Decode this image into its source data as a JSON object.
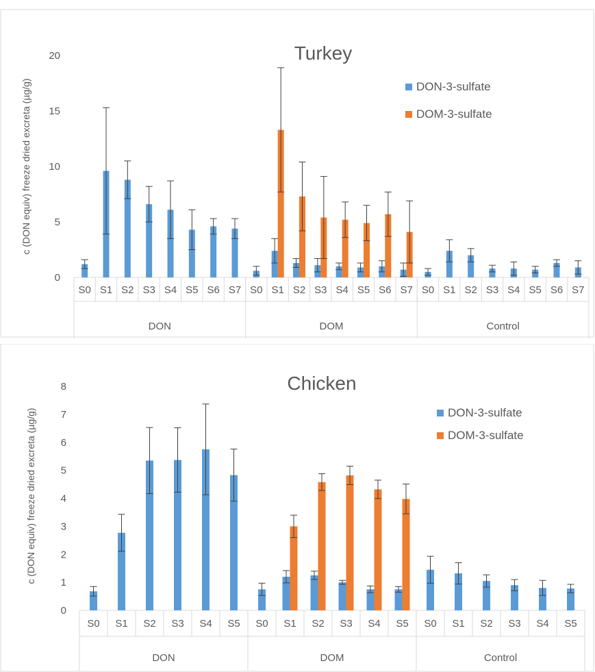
{
  "chart_data": [
    {
      "type": "bar",
      "title": "Turkey",
      "ylabel": "c (DON equiv) freeze dried excreta (µg/g)",
      "xlabel": "",
      "ylim": [
        0,
        20
      ],
      "yticks": [
        0,
        5,
        10,
        15,
        20
      ],
      "grid": false,
      "legend_position": "top-right",
      "groups": [
        {
          "name": "DON",
          "categories": [
            "S0",
            "S1",
            "S2",
            "S3",
            "S4",
            "S5",
            "S6",
            "S7"
          ]
        },
        {
          "name": "DOM",
          "categories": [
            "S0",
            "S1",
            "S2",
            "S3",
            "S4",
            "S5",
            "S6",
            "S7"
          ]
        },
        {
          "name": "Control",
          "categories": [
            "S0",
            "S1",
            "S2",
            "S3",
            "S4",
            "S5",
            "S6",
            "S7"
          ]
        }
      ],
      "series": [
        {
          "name": "DON-3-sulfate",
          "color": "#5B9BD5",
          "values": [
            [
              1.2,
              9.6,
              8.8,
              6.6,
              6.1,
              4.3,
              4.6,
              4.4
            ],
            [
              0.6,
              2.4,
              1.3,
              1.1,
              1.0,
              0.9,
              1.0,
              0.7
            ],
            [
              0.5,
              2.4,
              2.0,
              0.8,
              0.8,
              0.7,
              1.3,
              0.9
            ]
          ],
          "errors": [
            [
              0.4,
              5.7,
              1.7,
              1.6,
              2.6,
              1.8,
              0.7,
              0.9
            ],
            [
              0.4,
              1.1,
              0.4,
              0.6,
              0.3,
              0.4,
              0.5,
              0.6
            ],
            [
              0.3,
              1.0,
              0.6,
              0.3,
              0.6,
              0.3,
              0.3,
              0.6
            ]
          ]
        },
        {
          "name": "DOM-3-sulfate",
          "color": "#ED7D31",
          "values": [
            [
              null,
              null,
              null,
              null,
              null,
              null,
              null,
              null
            ],
            [
              null,
              13.3,
              7.3,
              5.4,
              5.2,
              4.9,
              5.7,
              4.1
            ],
            [
              null,
              null,
              null,
              null,
              null,
              null,
              null,
              null
            ]
          ],
          "errors": [
            [
              null,
              null,
              null,
              null,
              null,
              null,
              null,
              null
            ],
            [
              null,
              5.6,
              3.1,
              3.7,
              1.6,
              1.6,
              2.0,
              2.8
            ],
            [
              null,
              null,
              null,
              null,
              null,
              null,
              null,
              null
            ]
          ]
        }
      ]
    },
    {
      "type": "bar",
      "title": "Chicken",
      "ylabel": "c (DON equiv) freeze dried excreta (µg/g)",
      "xlabel": "",
      "ylim": [
        0,
        8
      ],
      "yticks": [
        0,
        1,
        2,
        3,
        4,
        5,
        6,
        7,
        8
      ],
      "grid": false,
      "legend_position": "top-right",
      "groups": [
        {
          "name": "DON",
          "categories": [
            "S0",
            "S1",
            "S2",
            "S3",
            "S4",
            "S5"
          ]
        },
        {
          "name": "DOM",
          "categories": [
            "S0",
            "S1",
            "S2",
            "S3",
            "S4",
            "S5"
          ]
        },
        {
          "name": "Control",
          "categories": [
            "S0",
            "S1",
            "S2",
            "S3",
            "S4",
            "S5"
          ]
        }
      ],
      "series": [
        {
          "name": "DON-3-sulfate",
          "color": "#5B9BD5",
          "values": [
            [
              0.68,
              2.77,
              5.35,
              5.37,
              5.75,
              4.83
            ],
            [
              0.75,
              1.2,
              1.25,
              1.0,
              0.75,
              0.75
            ],
            [
              1.45,
              1.32,
              1.05,
              0.9,
              0.8,
              0.78
            ]
          ],
          "errors": [
            [
              0.17,
              0.66,
              1.18,
              1.15,
              1.62,
              0.93
            ],
            [
              0.22,
              0.22,
              0.15,
              0.07,
              0.12,
              0.1
            ],
            [
              0.48,
              0.38,
              0.22,
              0.2,
              0.27,
              0.15
            ]
          ]
        },
        {
          "name": "DOM-3-sulfate",
          "color": "#ED7D31",
          "values": [
            [
              null,
              null,
              null,
              null,
              null,
              null
            ],
            [
              null,
              3.0,
              4.58,
              4.82,
              4.32,
              3.98
            ],
            [
              null,
              null,
              null,
              null,
              null,
              null
            ]
          ],
          "errors": [
            [
              null,
              null,
              null,
              null,
              null,
              null
            ],
            [
              null,
              0.4,
              0.3,
              0.33,
              0.33,
              0.53
            ],
            [
              null,
              null,
              null,
              null,
              null,
              null
            ]
          ]
        }
      ]
    }
  ]
}
